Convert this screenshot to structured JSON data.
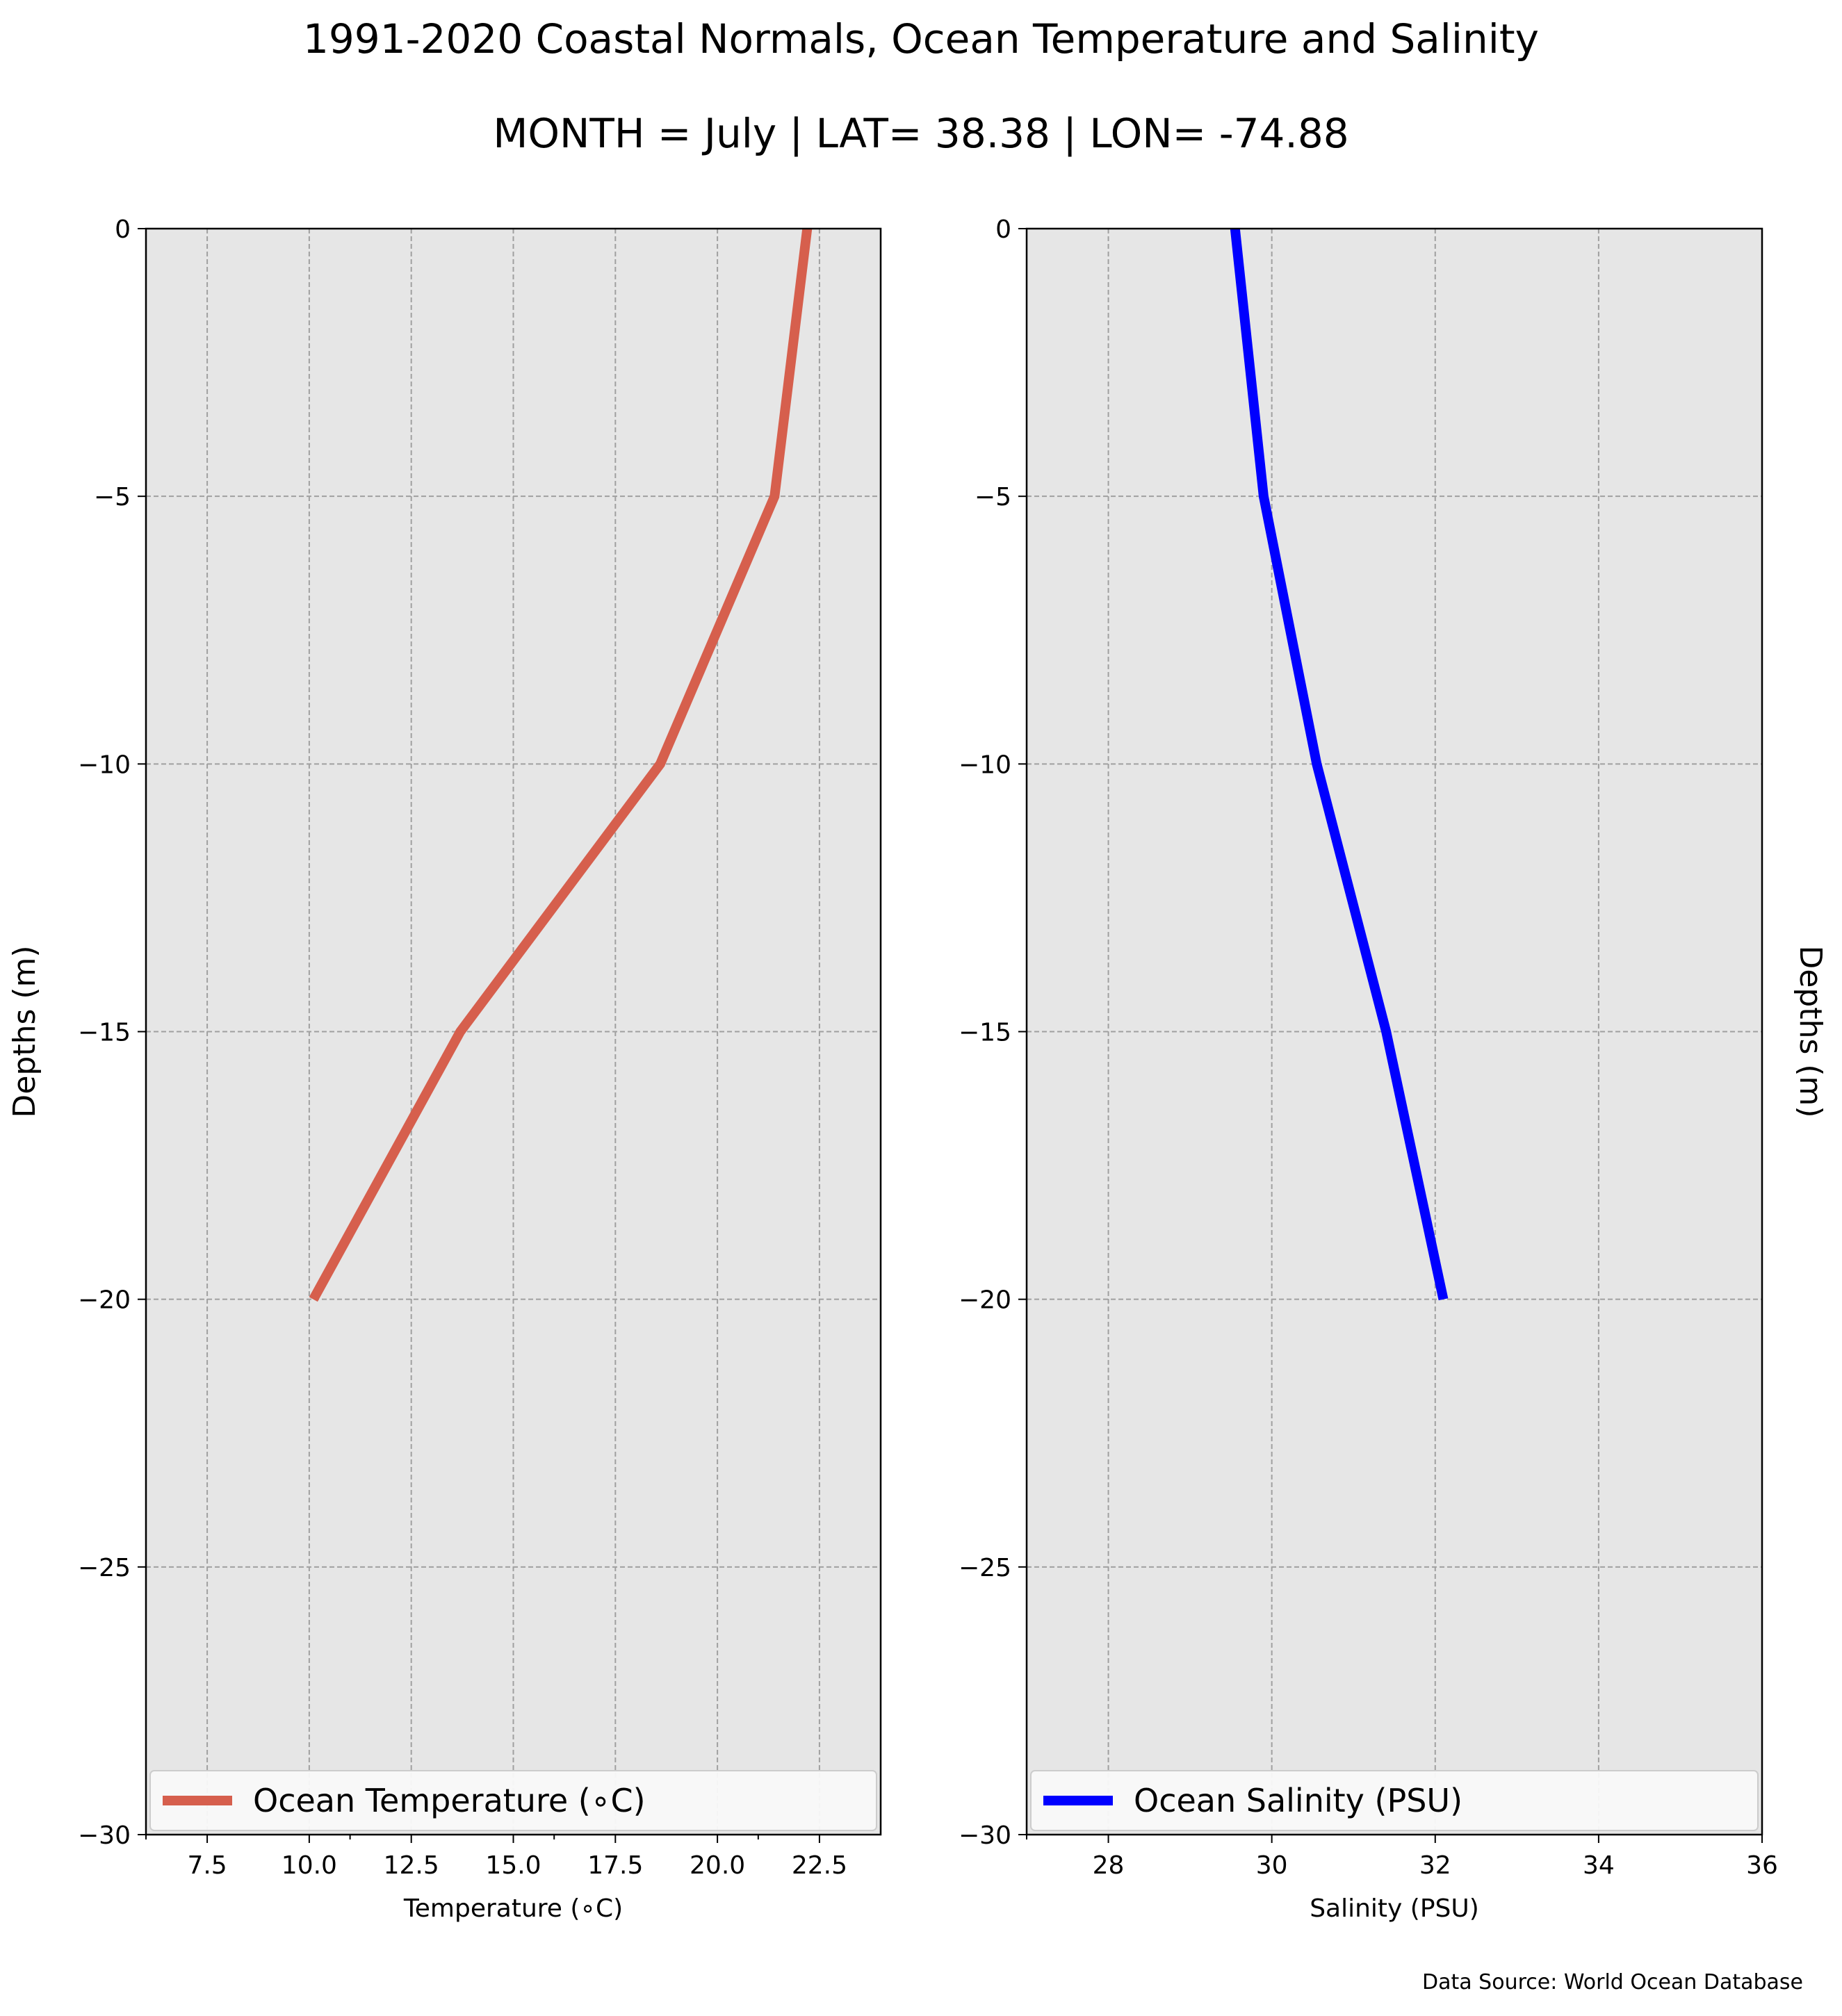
{
  "title": "1991-2020 Coastal Normals, Ocean Temperature and Salinity",
  "subtitle": "MONTH = July | LAT= 38.38 | LON= -74.88",
  "source": "Data Source: World Ocean Database",
  "colors": {
    "panel_bg": "#e6e6e6",
    "grid": "#a0a0a0",
    "temperature": "#d65f4d",
    "salinity": "#0000ff"
  },
  "chart_data": [
    {
      "type": "line",
      "xlabel": "Temperature (∘C)",
      "ylabel": "Depths (m)",
      "ylabel_side": "left",
      "xlim": [
        6.0,
        24.0
      ],
      "ylim": [
        -30,
        0
      ],
      "xticks": [
        7.5,
        10.0,
        12.5,
        15.0,
        17.5,
        20.0,
        22.5
      ],
      "xtick_labels": [
        "7.5",
        "10.0",
        "12.5",
        "15.0",
        "17.5",
        "20.0",
        "22.5"
      ],
      "yticks": [
        0,
        -5,
        -10,
        -15,
        -20,
        -25,
        -30
      ],
      "ytick_labels": [
        "0",
        "−5",
        "−10",
        "−15",
        "−20",
        "−25",
        "−30"
      ],
      "grid": true,
      "legend_position": "lower center",
      "series": [
        {
          "name": "Ocean Temperature (∘C)",
          "color": "#d65f4d",
          "x": [
            22.2,
            21.4,
            18.6,
            13.7,
            10.1
          ],
          "y": [
            0,
            -5,
            -10,
            -15,
            -20
          ]
        }
      ]
    },
    {
      "type": "line",
      "xlabel": "Salinity (PSU)",
      "ylabel": "Depths (m)",
      "ylabel_side": "right",
      "xlim": [
        27,
        36
      ],
      "ylim": [
        -30,
        0
      ],
      "xticks": [
        28,
        30,
        32,
        34,
        36
      ],
      "xtick_labels": [
        "28",
        "30",
        "32",
        "34",
        "36"
      ],
      "yticks": [
        0,
        -5,
        -10,
        -15,
        -20,
        -25,
        -30
      ],
      "ytick_labels": [
        "0",
        "−5",
        "−10",
        "−15",
        "−20",
        "−25",
        "−30"
      ],
      "grid": true,
      "legend_position": "lower center",
      "series": [
        {
          "name": "Ocean Salinity (PSU)",
          "color": "#0000ff",
          "x": [
            29.55,
            29.9,
            30.55,
            31.4,
            32.1
          ],
          "y": [
            0,
            -5,
            -10,
            -15,
            -20
          ]
        }
      ]
    }
  ]
}
